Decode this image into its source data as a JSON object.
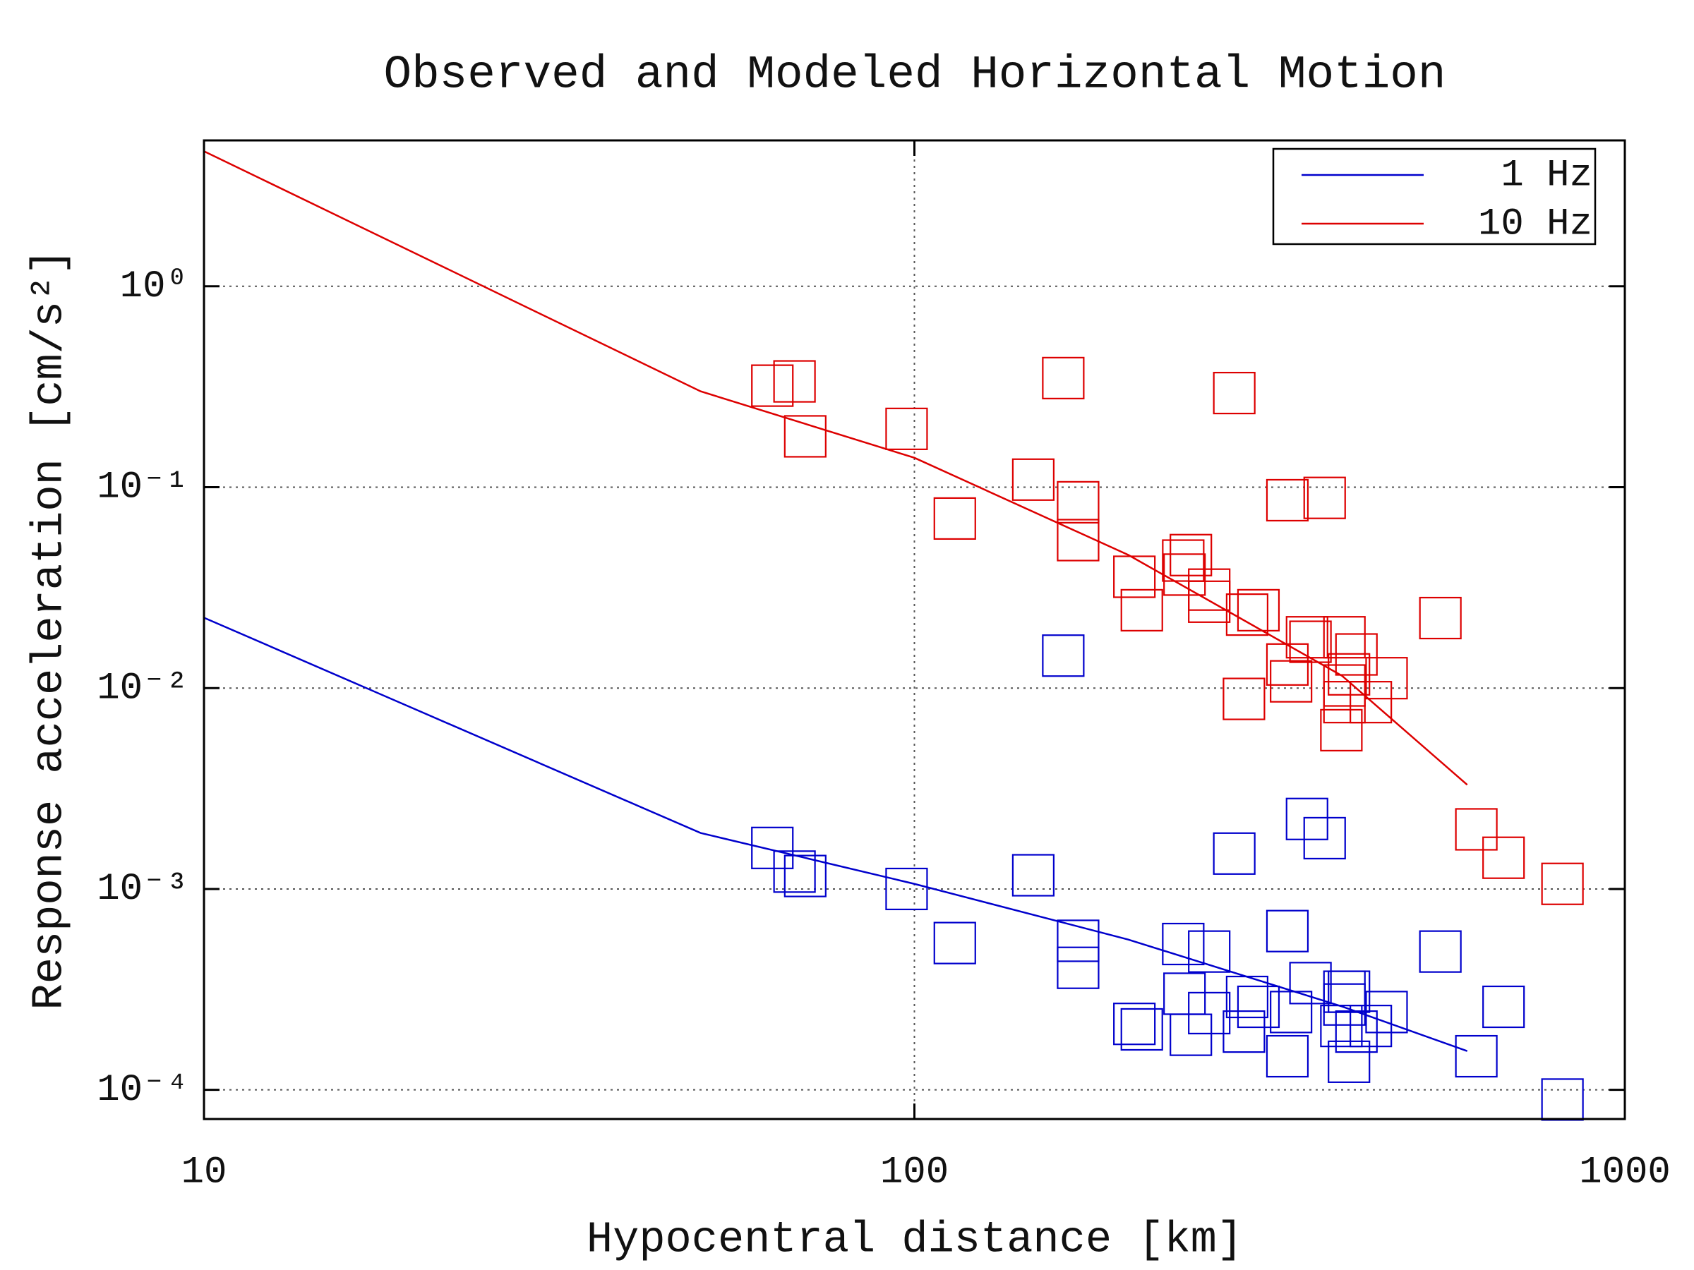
{
  "chart_data": {
    "type": "scatter",
    "title": "Observed and Modeled Horizontal Motion",
    "x_label": "Hypocentral distance [km]",
    "y_label": "Response acceleration [cm/s²]",
    "xlim": [
      10,
      1000
    ],
    "ylim": [
      7.16e-05,
      5.32
    ],
    "x_log": true,
    "y_log": true,
    "grid": true,
    "legend": "upper right",
    "xticks": [
      10,
      100,
      1000
    ],
    "yticks": [
      {
        "value": 0.0001,
        "label": "10⁻⁴"
      },
      {
        "value": 0.001,
        "label": "10⁻³"
      },
      {
        "value": 0.01,
        "label": "10⁻²"
      },
      {
        "value": 0.1,
        "label": "10⁻¹"
      },
      {
        "value": 1,
        "label": "10⁰"
      }
    ],
    "series": [
      {
        "name": "1 Hz",
        "color": "#0000cc",
        "x": [
          10,
          50,
          100,
          200,
          400,
          600
        ],
        "values": [
          0.0224,
          0.0019,
          0.00106,
          0.00056,
          0.00026,
          0.000156
        ]
      },
      {
        "name": "10 Hz",
        "color": "#dd0000",
        "x": [
          10,
          50,
          100,
          200,
          400,
          600
        ],
        "values": [
          4.7,
          0.3,
          0.14,
          0.046,
          0.0115,
          0.0033
        ]
      }
    ],
    "observations": [
      {
        "color": "#0000cc",
        "x": [
          162,
          63.1,
          67.8,
          70.2,
          97.5,
          114,
          147,
          170,
          170,
          204,
          209,
          239,
          240,
          245,
          260,
          260,
          282,
          291,
          294,
          305,
          335,
          335,
          339,
          357,
          378,
          361,
          403,
          409,
          403,
          399,
          409,
          419,
          439,
          462,
          550,
          618,
          675,
          817
        ],
        "values": [
          0.0145,
          0.0016,
          0.00122,
          0.00116,
          0.001,
          0.000538,
          0.00117,
          0.000552,
          0.000405,
          0.000213,
          0.0002,
          0.000532,
          0.000301,
          0.000188,
          0.000488,
          0.000241,
          0.0015,
          0.000195,
          0.00029,
          0.000259,
          0.000617,
          0.000147,
          0.000244,
          0.00223,
          0.00179,
          0.00034,
          0.000308,
          0.000308,
          0.000266,
          0.000208,
          0.000138,
          0.000195,
          0.000208,
          0.000244,
          0.000488,
          0.000147,
          0.000259,
          8.95e-05
        ]
      },
      {
        "color": "#dd0000",
        "x": [
          63.1,
          67.8,
          70.2,
          97.5,
          114,
          147,
          162,
          170,
          170,
          204,
          209,
          239,
          245,
          240,
          260,
          260,
          282,
          294,
          305,
          291,
          335,
          335,
          339,
          378,
          357,
          361,
          403,
          419,
          403,
          409,
          403,
          439,
          399,
          462,
          550,
          618,
          675,
          817
        ],
        "values": [
          0.32,
          0.336,
          0.179,
          0.195,
          0.0698,
          0.109,
          0.349,
          0.0841,
          0.0545,
          0.0358,
          0.0244,
          0.0431,
          0.0459,
          0.0367,
          0.0309,
          0.0269,
          0.294,
          0.0232,
          0.0244,
          0.00883,
          0.0861,
          0.0131,
          0.0108,
          0.0884,
          0.0179,
          0.017,
          0.0179,
          0.0147,
          0.0103,
          0.0117,
          0.00851,
          0.00851,
          0.00617,
          0.0112,
          0.0223,
          0.00198,
          0.00143,
          0.00106
        ]
      }
    ]
  }
}
